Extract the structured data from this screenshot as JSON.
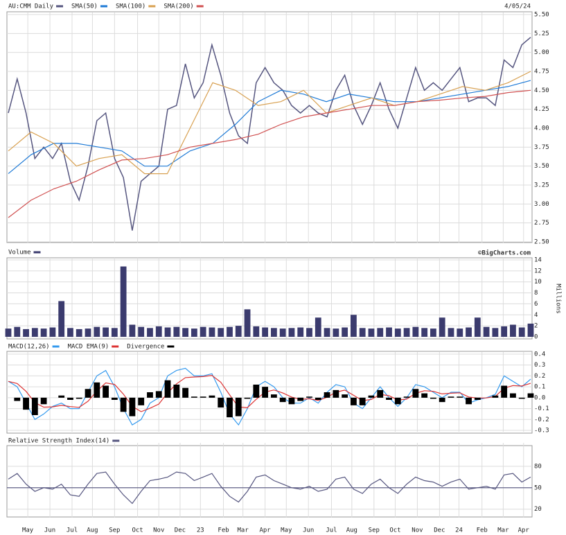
{
  "chart_data": [
    {
      "type": "line",
      "date": "4/05/24",
      "ylim": [
        2.5,
        5.5
      ],
      "yticks": [
        {
          "value": 2.5,
          "label": "2.50"
        },
        {
          "value": 2.75,
          "label": "2.75"
        },
        {
          "value": 3,
          "label": "3.00"
        },
        {
          "value": 3.25,
          "label": "3.25"
        },
        {
          "value": 3.5,
          "label": "3.50"
        },
        {
          "value": 3.75,
          "label": "3.75"
        },
        {
          "value": 4,
          "label": "4.00"
        },
        {
          "value": 4.25,
          "label": "4.25"
        },
        {
          "value": 4.5,
          "label": "4.50"
        },
        {
          "value": 4.75,
          "label": "4.75"
        },
        {
          "value": 5,
          "label": "5.00"
        },
        {
          "value": 5.25,
          "label": "5.25"
        },
        {
          "value": 5.5,
          "label": "5.50"
        }
      ],
      "grid": true,
      "series": [
        {
          "name": "AU:CMM Daily",
          "color": "#55557f",
          "values": [
            4.2,
            4.65,
            4.2,
            3.6,
            3.75,
            3.6,
            3.8,
            3.3,
            3.05,
            3.5,
            4.1,
            4.2,
            3.6,
            3.35,
            2.65,
            3.3,
            3.4,
            3.5,
            4.25,
            4.3,
            4.85,
            4.4,
            4.6,
            5.1,
            4.7,
            4.2,
            3.9,
            3.8,
            4.6,
            4.8,
            4.6,
            4.5,
            4.3,
            4.2,
            4.3,
            4.2,
            4.15,
            4.5,
            4.7,
            4.3,
            4.05,
            4.3,
            4.6,
            4.25,
            4.0,
            4.4,
            4.8,
            4.5,
            4.6,
            4.5,
            4.65,
            4.8,
            4.35,
            4.4,
            4.4,
            4.3,
            4.9,
            4.8,
            5.1,
            5.2
          ]
        },
        {
          "name": "SMA(50)",
          "color": "#1e7ad6",
          "values": [
            3.4,
            3.65,
            3.8,
            3.8,
            3.75,
            3.7,
            3.5,
            3.5,
            3.7,
            3.8,
            4.05,
            4.35,
            4.5,
            4.45,
            4.35,
            4.45,
            4.4,
            4.35,
            4.35,
            4.4,
            4.45,
            4.5,
            4.55,
            4.63
          ]
        },
        {
          "name": "SMA(100)",
          "color": "#d8a050",
          "values": [
            3.7,
            3.95,
            3.8,
            3.5,
            3.6,
            3.65,
            3.4,
            3.4,
            4.0,
            4.6,
            4.5,
            4.3,
            4.35,
            4.5,
            4.2,
            4.3,
            4.4,
            4.3,
            4.35,
            4.45,
            4.55,
            4.5,
            4.6,
            4.75
          ]
        },
        {
          "name": "SMA(200)",
          "color": "#d05050",
          "values": [
            2.82,
            3.05,
            3.2,
            3.3,
            3.45,
            3.58,
            3.6,
            3.65,
            3.75,
            3.8,
            3.85,
            3.92,
            4.05,
            4.15,
            4.2,
            4.25,
            4.3,
            4.3,
            4.35,
            4.37,
            4.4,
            4.42,
            4.47,
            4.5
          ]
        }
      ]
    },
    {
      "type": "bar",
      "credit": "©BigCharts.com",
      "y_label": "Millions",
      "ylim": [
        0,
        14
      ],
      "yticks": [
        0,
        2,
        4,
        6,
        8,
        10,
        12,
        14
      ],
      "grid": true,
      "series": [
        {
          "name": "Volume",
          "color": "#3b3b6e",
          "values": [
            1.5,
            1.8,
            1.4,
            1.6,
            1.5,
            1.7,
            6.5,
            1.6,
            1.4,
            1.5,
            1.8,
            1.7,
            1.6,
            12.8,
            2.2,
            1.8,
            1.6,
            1.9,
            1.7,
            1.8,
            1.6,
            1.5,
            1.8,
            1.7,
            1.6,
            1.8,
            2.0,
            5.0,
            1.9,
            1.7,
            1.6,
            1.5,
            1.6,
            1.7,
            1.6,
            3.5,
            1.6,
            1.5,
            1.7,
            4.0,
            1.6,
            1.5,
            1.6,
            1.7,
            1.5,
            1.6,
            1.8,
            1.6,
            1.5,
            3.5,
            1.6,
            1.5,
            1.7,
            3.5,
            1.8,
            1.6,
            1.9,
            2.2,
            1.7,
            2.4
          ]
        }
      ]
    },
    {
      "type": "line",
      "ylim": [
        -0.3,
        0.4
      ],
      "yticks": [
        -0.3,
        -0.2,
        -0.1,
        {
          "value": 0,
          "label": "0.0"
        },
        0.1,
        0.2,
        0.3,
        0.4
      ],
      "grid": true,
      "series": [
        {
          "name": "MACD(12,26)",
          "color": "#3399ee",
          "values": [
            0.15,
            0.1,
            -0.05,
            -0.2,
            -0.15,
            -0.08,
            -0.05,
            -0.1,
            -0.1,
            0.05,
            0.2,
            0.25,
            0.1,
            -0.1,
            -0.25,
            -0.2,
            -0.05,
            0.0,
            0.2,
            0.25,
            0.27,
            0.2,
            0.2,
            0.22,
            0.05,
            -0.15,
            -0.25,
            -0.1,
            0.1,
            0.15,
            0.1,
            0.0,
            -0.05,
            -0.05,
            0.0,
            -0.05,
            0.05,
            0.12,
            0.1,
            -0.05,
            -0.1,
            0.0,
            0.1,
            0.0,
            -0.08,
            0.0,
            0.12,
            0.1,
            0.05,
            0.0,
            0.05,
            0.05,
            -0.05,
            -0.02,
            0.0,
            0.03,
            0.2,
            0.15,
            0.1,
            0.17
          ]
        },
        {
          "name": "MACD EMA(9)",
          "color": "#dd3333",
          "values": [
            0.15,
            0.13,
            0.058,
            -0.045,
            -0.087,
            -0.084,
            -0.07,
            -0.082,
            -0.089,
            -0.033,
            0.06,
            0.136,
            0.122,
            0.033,
            -0.08,
            -0.128,
            -0.097,
            -0.058,
            0.045,
            0.127,
            0.184,
            0.19,
            0.194,
            0.204,
            0.142,
            0.025,
            -0.085,
            -0.091,
            -0.015,
            0.051,
            0.071,
            0.043,
            0.006,
            -0.016,
            -0.01,
            -0.026,
            0.004,
            0.05,
            0.07,
            0.022,
            -0.027,
            -0.016,
            0.03,
            0.018,
            -0.021,
            -0.013,
            0.04,
            0.064,
            0.058,
            0.035,
            0.041,
            0.045,
            0.007,
            -0.004,
            -0.002,
            0.011,
            0.087,
            0.112,
            0.107,
            0.132
          ]
        },
        {
          "name": "Divergence",
          "color": "#000000",
          "style": "bar",
          "values": [
            0,
            -0.03,
            -0.11,
            -0.16,
            -0.06,
            0,
            0.02,
            -0.02,
            -0.01,
            0.08,
            0.14,
            0.11,
            -0.02,
            -0.13,
            -0.17,
            -0.07,
            0.05,
            0.06,
            0.16,
            0.12,
            0.09,
            0.01,
            0.01,
            0.02,
            -0.09,
            -0.18,
            -0.17,
            -0.01,
            0.12,
            0.1,
            0.03,
            -0.04,
            -0.06,
            -0.03,
            0.01,
            -0.02,
            0.05,
            0.07,
            0.03,
            -0.07,
            -0.07,
            0.02,
            0.07,
            -0.02,
            -0.06,
            0.01,
            0.08,
            0.04,
            -0.01,
            -0.04,
            0.01,
            0.01,
            -0.06,
            -0.02,
            0,
            0.02,
            0.11,
            0.04,
            -0.01,
            0.04
          ]
        }
      ]
    },
    {
      "type": "line",
      "ylim": [
        10,
        110
      ],
      "yticks": [
        20,
        50,
        80
      ],
      "grid": true,
      "reference_line": 50,
      "xlim": [
        0,
        59
      ],
      "xticks": [
        {
          "value": 2.2,
          "label": "May"
        },
        {
          "value": 4.7,
          "label": "Jun"
        },
        {
          "value": 7.2,
          "label": "Jul"
        },
        {
          "value": 9.5,
          "label": "Aug"
        },
        {
          "value": 12.0,
          "label": "Sep"
        },
        {
          "value": 14.6,
          "label": "Oct"
        },
        {
          "value": 17.0,
          "label": "Nov"
        },
        {
          "value": 19.4,
          "label": "Dec"
        },
        {
          "value": 21.7,
          "label": "23"
        },
        {
          "value": 24.3,
          "label": "Feb"
        },
        {
          "value": 26.5,
          "label": "Mar"
        },
        {
          "value": 29.0,
          "label": "Apr"
        },
        {
          "value": 31.4,
          "label": "May"
        },
        {
          "value": 33.9,
          "label": "Jun"
        },
        {
          "value": 36.5,
          "label": "Jul"
        },
        {
          "value": 38.8,
          "label": "Aug"
        },
        {
          "value": 41.3,
          "label": "Sep"
        },
        {
          "value": 43.7,
          "label": "Oct"
        },
        {
          "value": 46.2,
          "label": "Nov"
        },
        {
          "value": 48.7,
          "label": "Dec"
        },
        {
          "value": 50.9,
          "label": "24"
        },
        {
          "value": 53.5,
          "label": "Feb"
        },
        {
          "value": 55.9,
          "label": "Mar"
        },
        {
          "value": 58.2,
          "label": "Apr"
        }
      ],
      "series": [
        {
          "name": "Relative Strength Index(14)",
          "color": "#55557f",
          "values": [
            62,
            70,
            55,
            45,
            50,
            48,
            55,
            40,
            38,
            55,
            70,
            72,
            55,
            40,
            28,
            45,
            60,
            62,
            65,
            72,
            70,
            60,
            65,
            70,
            52,
            38,
            30,
            45,
            65,
            68,
            60,
            55,
            50,
            48,
            52,
            45,
            48,
            62,
            65,
            48,
            42,
            55,
            62,
            50,
            42,
            55,
            65,
            60,
            58,
            52,
            58,
            62,
            48,
            50,
            52,
            48,
            68,
            70,
            58,
            65
          ]
        }
      ]
    }
  ]
}
